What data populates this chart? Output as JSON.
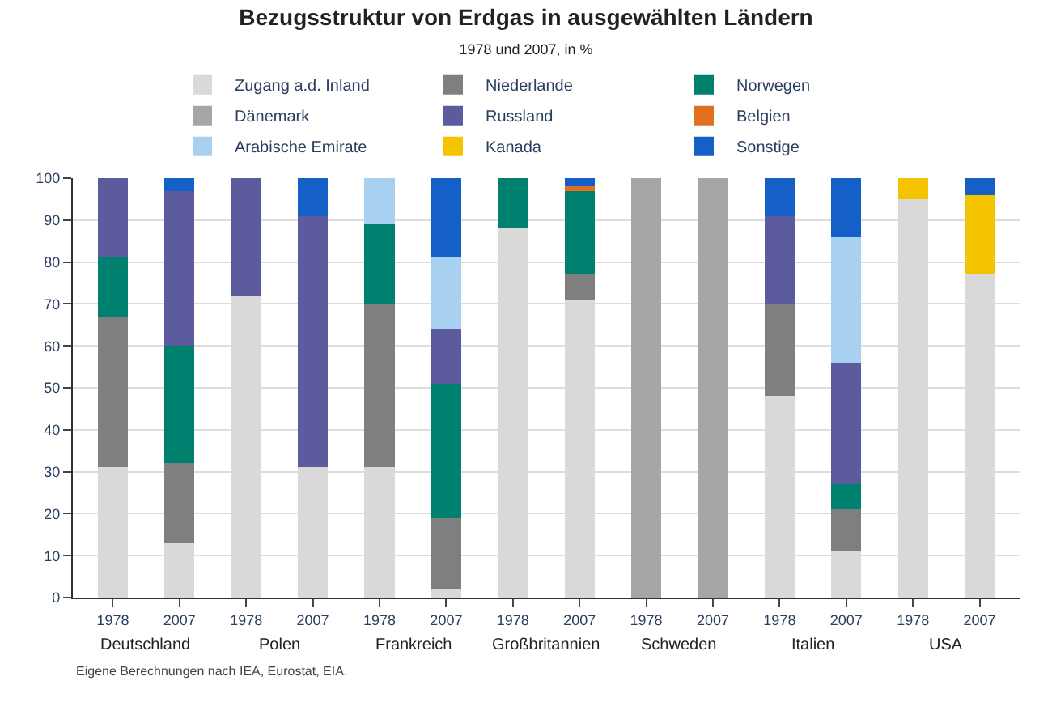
{
  "chart_data": {
    "type": "bar",
    "stacked": true,
    "title": "Bezugsstruktur von Erdgas in ausgewählten Ländern",
    "subtitle": "1978 und 2007, in %",
    "categories": [
      "1978",
      "2007",
      "1978",
      "2007",
      "1978",
      "2007",
      "1978",
      "2007",
      "1978",
      "2007",
      "1978",
      "2007",
      "1978",
      "2007"
    ],
    "series": [
      {
        "name": "Zugang a.d. Inland",
        "color": "#d9d9d9",
        "values": [
          31,
          13,
          72,
          31,
          31,
          2,
          88,
          71,
          null,
          null,
          48,
          11,
          95,
          77
        ]
      },
      {
        "name": "Niederlande",
        "color": "#7f7f7f",
        "values": [
          36,
          19,
          null,
          null,
          39,
          17,
          null,
          6,
          null,
          null,
          22,
          10,
          null,
          null
        ]
      },
      {
        "name": "Norwegen",
        "color": "#00806e",
        "values": [
          14,
          28,
          null,
          null,
          19,
          32,
          12,
          20,
          null,
          null,
          null,
          6,
          null,
          null
        ]
      },
      {
        "name": "Dänemark",
        "color": "#a6a6a6",
        "values": [
          null,
          null,
          null,
          null,
          null,
          null,
          null,
          null,
          100,
          100,
          null,
          null,
          null,
          null
        ]
      },
      {
        "name": "Russland",
        "color": "#5b5b9e",
        "values": [
          19,
          37,
          28,
          60,
          null,
          13,
          null,
          null,
          null,
          null,
          21,
          29,
          null,
          null
        ]
      },
      {
        "name": "Belgien",
        "color": "#e07020",
        "values": [
          null,
          null,
          null,
          null,
          null,
          null,
          null,
          1,
          null,
          null,
          null,
          null,
          null,
          null
        ]
      },
      {
        "name": "Arabische Emirate",
        "color": "#a8d0f0",
        "values": [
          null,
          null,
          null,
          null,
          11,
          17,
          null,
          null,
          null,
          null,
          null,
          30,
          null,
          null
        ]
      },
      {
        "name": "Kanada",
        "color": "#f5c400",
        "values": [
          null,
          null,
          null,
          null,
          null,
          null,
          null,
          null,
          null,
          null,
          null,
          null,
          5,
          19
        ]
      },
      {
        "name": "Sonstige",
        "color": "#1560c8",
        "values": [
          null,
          3,
          null,
          9,
          null,
          19,
          null,
          2,
          null,
          null,
          9,
          14,
          null,
          4
        ]
      }
    ],
    "ylim": [
      0,
      100
    ],
    "yticks": [
      0,
      10,
      20,
      30,
      40,
      50,
      60,
      70,
      80,
      90,
      100
    ],
    "grid": "y",
    "legend": "top",
    "annotations": [
      "Deutschland",
      "Polen",
      "Frankreich",
      "Großbritannien",
      "Schweden",
      "Italien",
      "USA",
      "Eigene Berechnungen nach IEA, Eurostat, EIA."
    ]
  }
}
